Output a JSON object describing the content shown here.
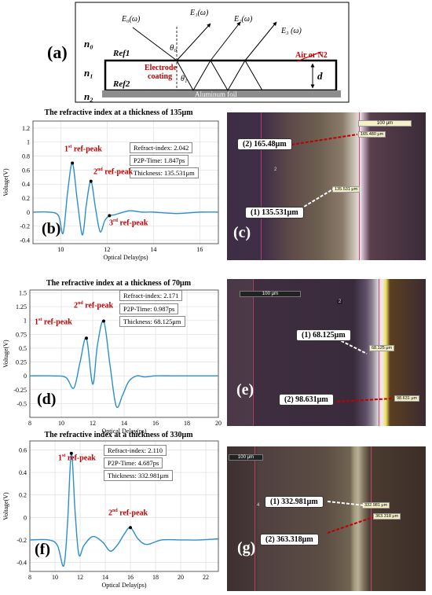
{
  "diagram_a": {
    "label": "(a)",
    "e0": "E₀(ω)",
    "e1": "E₁(ω)",
    "e2": "E₂(ω)",
    "e3": "E₃ (ω)",
    "n0": "n₀",
    "n1": "n₁",
    "n2": "n₂",
    "ref1": "Ref1",
    "ref2": "Ref2",
    "theta0": "θ₀",
    "theta1": "θ₁",
    "electrode": "Electrode",
    "coating": "coating",
    "air": "Air or N2",
    "d": "d",
    "foil": "Aluminum foil"
  },
  "panels": [
    {
      "id": "b",
      "title": "The refractive index at a thickness of 135μm",
      "letter": "(b)",
      "info": [
        "Refract-index: 2.042",
        "P2P-Time: 1.847ps",
        "Thickness: 135.531μm"
      ],
      "peaks": [
        {
          "sup": "st",
          "num": "1",
          "text": " ref-peak"
        },
        {
          "sup": "nd",
          "num": "2",
          "text": " ref-peak"
        },
        {
          "sup": "rd",
          "num": "3",
          "text": " ref-peak"
        }
      ]
    },
    {
      "id": "d",
      "title": "The refractive index at a thickness of 70μm",
      "letter": "(d)",
      "info": [
        "Refract-index: 2.171",
        "P2P-Time: 0.987ps",
        "Thickness: 68.125μm"
      ],
      "peaks": [
        {
          "sup": "st",
          "num": "1",
          "text": " ref-peak"
        },
        {
          "sup": "nd",
          "num": "2",
          "text": " ref-peak"
        }
      ]
    },
    {
      "id": "f",
      "title": "The refractive index at a thickness of 330μm",
      "letter": "(f)",
      "info": [
        "Refract-index: 2.110",
        "P2P-Time: 4.687ps",
        "Thickness: 332.981μm"
      ],
      "peaks": [
        {
          "sup": "st",
          "num": "1",
          "text": " ref-peak"
        },
        {
          "sup": "nd",
          "num": "2",
          "text": " ref-peak"
        }
      ]
    }
  ],
  "micrographs": [
    {
      "letter": "(c)",
      "scale": "100 μm",
      "callout1": "(2) 165.48μm",
      "callout2": "(1) 135.531μm",
      "meas1": "165.480 μm",
      "meas2": "135.531 μm",
      "marker": "2"
    },
    {
      "letter": "(e)",
      "scale": "100 μm",
      "callout1": "(1) 68.125μm",
      "callout2": "(2) 98.631μm",
      "meas1": "68.125 μm",
      "meas2": "98.631 μm",
      "marker": "2"
    },
    {
      "letter": "(g)",
      "scale": "100 μm",
      "callout1": "(1) 332.981μm",
      "callout2": "(2) 363.318μm",
      "meas1": "332.981 μm",
      "meas2": "363.318 μm",
      "marker": "4"
    }
  ],
  "chart_data": [
    {
      "type": "line",
      "title": "The refractive index at a thickness of 135μm",
      "xlabel": "Optical Delay(ps)",
      "ylabel": "Voltage(V)",
      "xlim": [
        8.8,
        16.8
      ],
      "ylim": [
        -0.45,
        1.3
      ],
      "xticks": [
        10,
        12,
        14,
        16
      ],
      "yticks": [
        -0.4,
        -0.2,
        0,
        0.2,
        0.4,
        0.6,
        0.8,
        1,
        1.2
      ],
      "grid": true,
      "x": [
        8.8,
        9.5,
        9.9,
        10.1,
        10.3,
        10.5,
        10.7,
        10.9,
        11.0,
        11.1,
        11.3,
        11.5,
        11.7,
        11.9,
        12.1,
        12.3,
        12.6,
        13.0,
        13.5,
        14.0,
        15.0,
        16.0,
        16.8
      ],
      "y": [
        0.0,
        0.0,
        -0.05,
        -0.3,
        0.3,
        0.7,
        0.2,
        -0.3,
        -0.22,
        0.1,
        0.44,
        0.05,
        -0.28,
        -0.12,
        -0.05,
        -0.04,
        -0.01,
        0.02,
        0.0,
        0.0,
        -0.02,
        0.0,
        0.0
      ],
      "markers": [
        {
          "x": 10.5,
          "y": 0.7
        },
        {
          "x": 11.3,
          "y": 0.44
        },
        {
          "x": 12.1,
          "y": -0.05
        }
      ]
    },
    {
      "type": "line",
      "title": "The refractive index at a thickness of 70μm",
      "xlabel": "Optical Delay(ps)",
      "ylabel": "Voltage(V)",
      "xlim": [
        8,
        20
      ],
      "ylim": [
        -0.75,
        1.55
      ],
      "xticks": [
        8,
        10,
        12,
        14,
        16,
        18,
        20
      ],
      "yticks": [
        -0.5,
        -0.25,
        0,
        0.25,
        0.5,
        0.75,
        1,
        1.25,
        1.5
      ],
      "grid": true,
      "x": [
        8,
        9.5,
        10.3,
        10.8,
        11.2,
        11.6,
        12.0,
        12.3,
        12.7,
        13.1,
        13.5,
        13.9,
        14.3,
        14.8,
        15.3,
        16,
        17,
        18,
        20
      ],
      "y": [
        0.0,
        0.0,
        -0.03,
        -0.22,
        0.25,
        0.68,
        -0.15,
        0.55,
        0.99,
        0.2,
        -0.55,
        -0.35,
        -0.1,
        0.0,
        -0.02,
        0.0,
        0.0,
        0.0,
        0.0
      ],
      "markers": [
        {
          "x": 11.6,
          "y": 0.68
        },
        {
          "x": 12.7,
          "y": 0.99
        }
      ]
    },
    {
      "type": "line",
      "title": "The refractive index at a thickness of 330μm",
      "xlabel": "Optical Delay(ps)",
      "ylabel": "Voltage(V)",
      "xlim": [
        8,
        23
      ],
      "ylim": [
        -0.48,
        0.68
      ],
      "xticks": [
        8,
        10,
        12,
        14,
        16,
        18,
        20,
        22
      ],
      "yticks": [
        -0.4,
        -0.2,
        0,
        0.2,
        0.4,
        0.6
      ],
      "grid": true,
      "x": [
        8,
        9.5,
        10.2,
        10.7,
        11.0,
        11.3,
        11.6,
        11.9,
        12.3,
        13.0,
        13.8,
        14.4,
        15.0,
        15.5,
        16.0,
        16.6,
        17.3,
        18.5,
        20,
        21.5,
        23
      ],
      "y": [
        -0.2,
        -0.2,
        -0.25,
        -0.43,
        -0.05,
        0.57,
        0.05,
        -0.33,
        -0.25,
        -0.17,
        -0.22,
        -0.3,
        -0.24,
        -0.15,
        -0.09,
        -0.19,
        -0.24,
        -0.2,
        -0.2,
        -0.2,
        -0.19
      ],
      "markers": [
        {
          "x": 11.3,
          "y": 0.57
        },
        {
          "x": 16.0,
          "y": -0.09
        }
      ]
    }
  ]
}
